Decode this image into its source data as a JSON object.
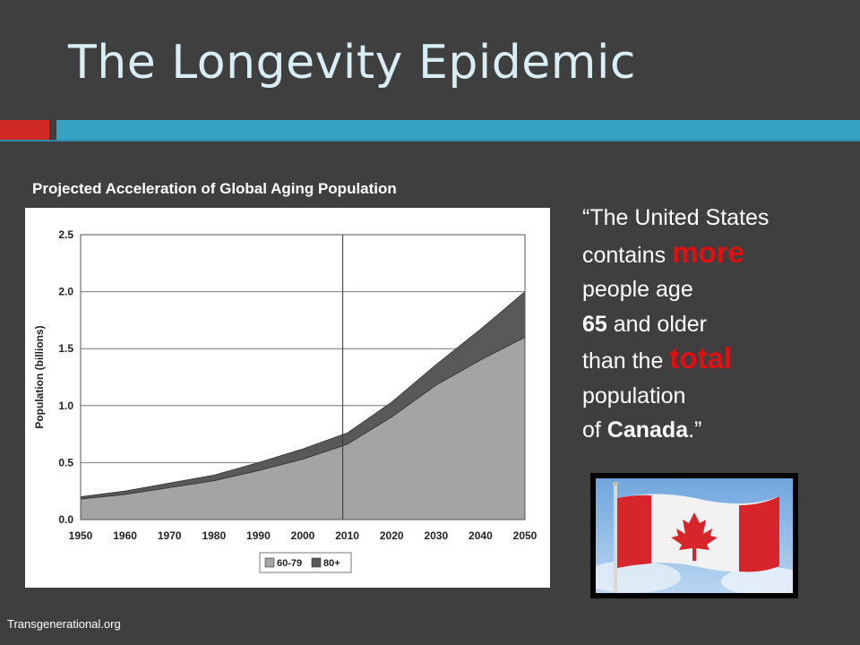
{
  "slide": {
    "title": "The Longevity Epidemic",
    "accent_red": "#d12a26",
    "accent_blue": "#35a2c1",
    "source": "Transgenerational.org"
  },
  "quote": {
    "line1": "“The United States",
    "line2_a": "contains ",
    "line2_hl": "more",
    "line3": "people age",
    "line4_bold": "65",
    "line4_rest": " and older",
    "line5_a": "than the ",
    "line5_hl": "total",
    "line6": "population",
    "line7_a": "of ",
    "line7_bold": "Canada",
    "line7_end": ".”",
    "highlight_color": "#e01010"
  },
  "flag": {
    "image": "canadian-flag-photo"
  },
  "chart_data": {
    "type": "area",
    "title": "Projected Acceleration of Global Aging Population",
    "ylabel": "Population (billions)",
    "xlabel": "",
    "x": [
      1950,
      1960,
      1970,
      1980,
      1990,
      2000,
      2010,
      2020,
      2030,
      2040,
      2050
    ],
    "ylim": [
      0,
      2.5
    ],
    "yticks": [
      "0.0",
      "0.5",
      "1.0",
      "1.5",
      "2.0",
      "2.5"
    ],
    "xticks": [
      "1950",
      "1960",
      "1970",
      "1980",
      "1990",
      "2000",
      "2010",
      "2020",
      "2030",
      "2040",
      "2050"
    ],
    "stacked": true,
    "series": [
      {
        "name": "60-79",
        "values": [
          0.18,
          0.22,
          0.28,
          0.34,
          0.43,
          0.53,
          0.66,
          0.9,
          1.18,
          1.4,
          1.6
        ],
        "color": "#a4a4a4"
      },
      {
        "name": "80+",
        "values": [
          0.02,
          0.03,
          0.04,
          0.05,
          0.07,
          0.09,
          0.1,
          0.13,
          0.18,
          0.27,
          0.4
        ],
        "color": "#595959"
      }
    ],
    "reference_line_x": 2009,
    "grid": true,
    "legend_position": "bottom-center"
  }
}
